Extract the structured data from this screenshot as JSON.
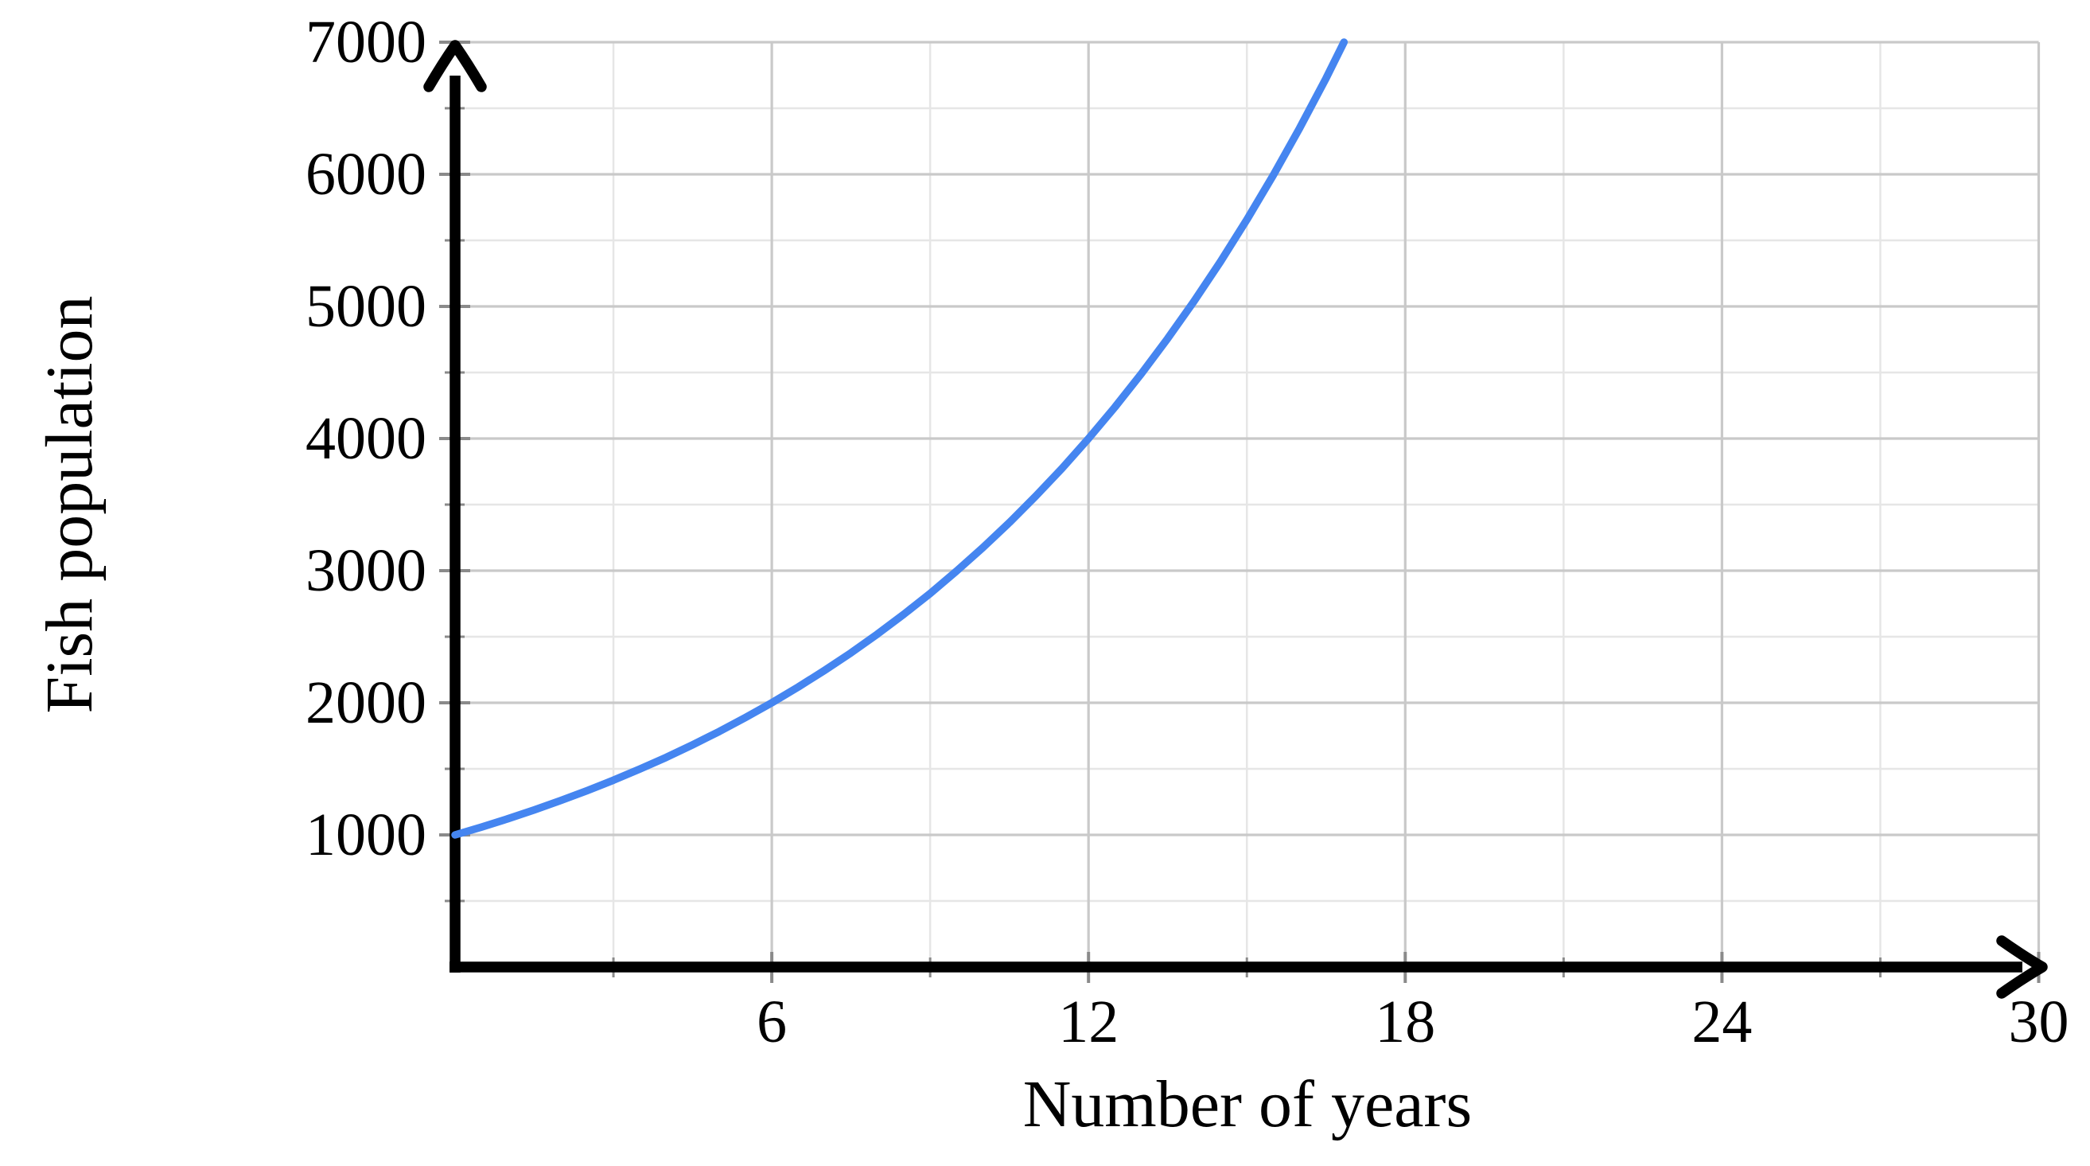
{
  "figure": {
    "background": "#ffffff",
    "text_color": "#000000"
  },
  "chart_data": {
    "type": "line",
    "title": "",
    "xlabel": "Number of years",
    "ylabel": "Fish population",
    "xlim": [
      0,
      30
    ],
    "ylim": [
      0,
      7000
    ],
    "grid": "major+minor",
    "legend": "none",
    "x_major_ticks": [
      6,
      12,
      18,
      24,
      30
    ],
    "x_tick_labels": [
      "6",
      "12",
      "18",
      "24",
      "30"
    ],
    "x_minor_ticks": [
      3,
      9,
      15,
      21,
      27
    ],
    "y_major_ticks": [
      1000,
      2000,
      3000,
      4000,
      5000,
      6000,
      7000
    ],
    "y_tick_labels": [
      "1000",
      "2000",
      "3000",
      "4000",
      "5000",
      "6000",
      "7000"
    ],
    "y_minor_ticks": [
      500,
      1500,
      2500,
      3500,
      4500,
      5500,
      6500
    ],
    "colors": {
      "axis": "#000000",
      "tick": "#8a8a8a",
      "major_grid": "#c9c9c9",
      "minor_grid": "#e6e6e6"
    },
    "series": [
      {
        "name": "fish-population",
        "color": "#4585f0",
        "stroke_width": 9.5,
        "model": "P(t) = 1000 * 2^(t/6)",
        "points": [
          [
            0,
            1000
          ],
          [
            0.5,
            1059
          ],
          [
            1,
            1122
          ],
          [
            1.5,
            1189
          ],
          [
            2,
            1260
          ],
          [
            2.5,
            1335
          ],
          [
            3,
            1414
          ],
          [
            3.5,
            1498
          ],
          [
            4,
            1587
          ],
          [
            4.5,
            1682
          ],
          [
            5,
            1782
          ],
          [
            5.5,
            1888
          ],
          [
            6,
            2000
          ],
          [
            6.5,
            2119
          ],
          [
            7,
            2245
          ],
          [
            7.5,
            2378
          ],
          [
            8,
            2520
          ],
          [
            8.5,
            2670
          ],
          [
            9,
            2828
          ],
          [
            9.5,
            2997
          ],
          [
            10,
            3175
          ],
          [
            10.5,
            3364
          ],
          [
            11,
            3564
          ],
          [
            11.5,
            3775
          ],
          [
            12,
            4000
          ],
          [
            12.5,
            4238
          ],
          [
            13,
            4490
          ],
          [
            13.5,
            4757
          ],
          [
            14,
            5040
          ],
          [
            14.5,
            5339
          ],
          [
            15,
            5657
          ],
          [
            15.5,
            5993
          ],
          [
            16,
            6350
          ],
          [
            16.5,
            6727
          ],
          [
            16.84,
            7000
          ]
        ]
      }
    ]
  }
}
